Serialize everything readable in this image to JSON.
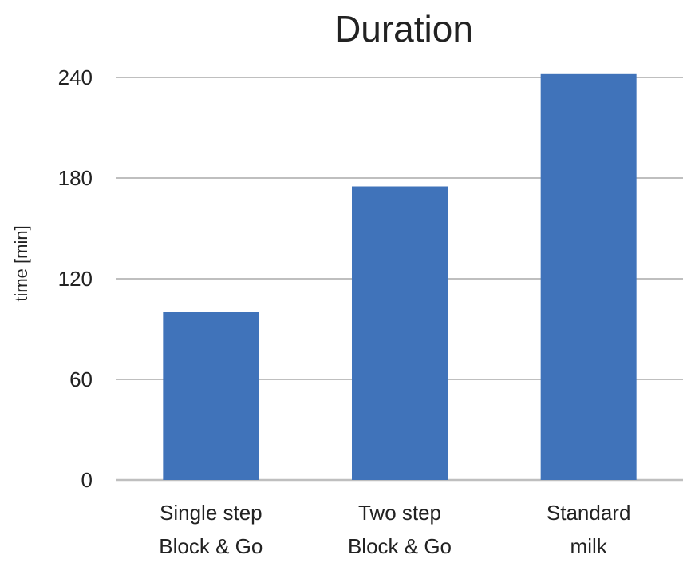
{
  "chart_data": {
    "type": "bar",
    "title": "Duration",
    "xlabel": "",
    "ylabel": "time [min]",
    "categories": [
      [
        "Single step",
        "Block & Go"
      ],
      [
        "Two step",
        "Block & Go"
      ],
      [
        "Standard",
        "milk"
      ]
    ],
    "values": [
      100,
      175,
      242
    ],
    "ylim": [
      0,
      240
    ],
    "yticks": [
      0,
      60,
      120,
      180,
      240
    ],
    "grid": true,
    "legend": "none",
    "colors": {
      "bar": "#4073BA",
      "grid": "#BFBFBF",
      "text": "#222222"
    }
  }
}
